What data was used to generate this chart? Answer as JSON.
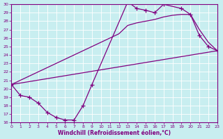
{
  "bg_color": "#c8eef0",
  "grid_color": "#ffffff",
  "line_color": "#800080",
  "xlabel": "Windchill (Refroidissement éolien,°C)",
  "xlim": [
    0,
    23
  ],
  "ylim": [
    16,
    30
  ],
  "yticks": [
    16,
    17,
    18,
    19,
    20,
    21,
    22,
    23,
    24,
    25,
    26,
    27,
    28,
    29,
    30
  ],
  "xticks": [
    0,
    1,
    2,
    3,
    4,
    5,
    6,
    7,
    8,
    9,
    10,
    11,
    12,
    13,
    14,
    15,
    16,
    17,
    18,
    19,
    20,
    21,
    22,
    23
  ],
  "line1_x": [
    0,
    1,
    2,
    3,
    4,
    5,
    6,
    7,
    8,
    9,
    13,
    14,
    15,
    16,
    17,
    19,
    20,
    21,
    22,
    23
  ],
  "line1_y": [
    20.5,
    19.2,
    19.0,
    18.3,
    17.2,
    16.6,
    16.3,
    16.3,
    18.0,
    20.5,
    30.3,
    29.5,
    29.3,
    29.0,
    30.0,
    29.5,
    28.8,
    26.3,
    25.0,
    24.5
  ],
  "line2_x": [
    0,
    12,
    13,
    14,
    15,
    16,
    17,
    18,
    19,
    20,
    21,
    22,
    23
  ],
  "line2_y": [
    20.5,
    26.5,
    27.5,
    27.8,
    28.0,
    28.2,
    28.5,
    28.7,
    28.8,
    28.8,
    27.0,
    25.5,
    24.5
  ],
  "line3_x": [
    0,
    23
  ],
  "line3_y": [
    20.5,
    24.5
  ]
}
